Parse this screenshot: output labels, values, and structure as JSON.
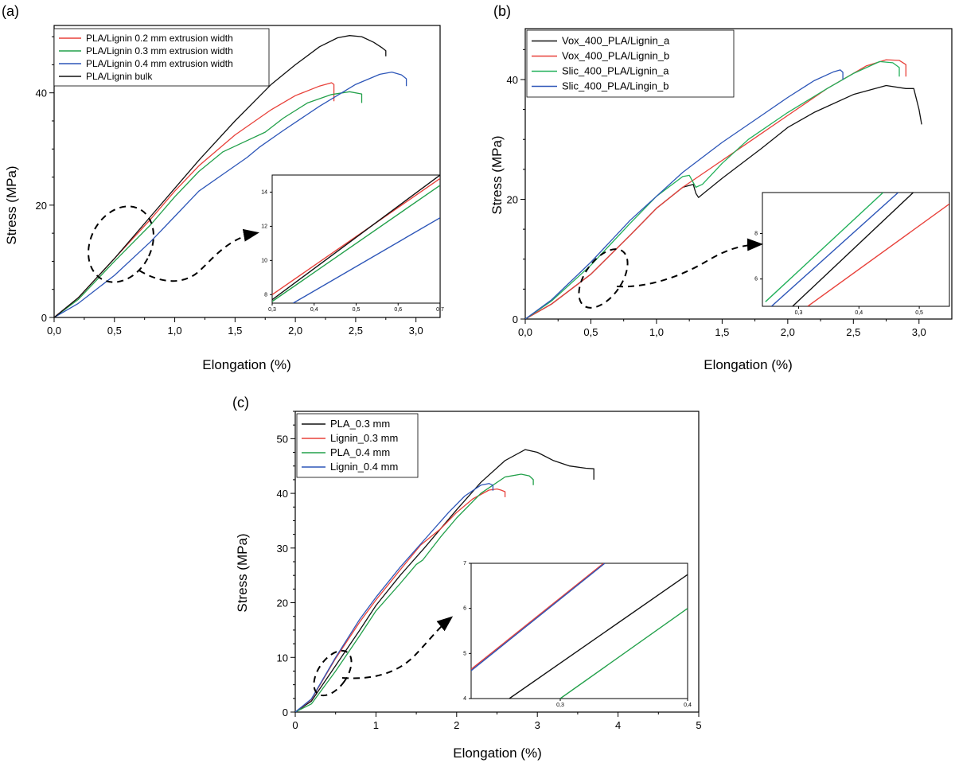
{
  "chart_data": [
    {
      "panel": "(a)",
      "type": "line",
      "xlabel": "Elongation (%)",
      "ylabel": "Stress (MPa)",
      "xlim": [
        0,
        3.2
      ],
      "ylim": [
        0,
        52
      ],
      "xticks": [
        "0,0",
        "0,5",
        "1,0",
        "1,5",
        "2,0",
        "2,5",
        "3,0"
      ],
      "yticks": [
        "0",
        "20",
        "40"
      ],
      "legend_position": "top-left",
      "series": [
        {
          "name": "PLA/Lignin 0.2 mm extrusion width",
          "color": "#e8413a",
          "x": [
            0,
            0.2,
            0.5,
            0.8,
            1.0,
            1.2,
            1.5,
            1.8,
            2.0,
            2.2,
            2.3,
            2.32,
            2.32
          ],
          "y": [
            0,
            3.5,
            10.5,
            17.5,
            22.5,
            27,
            32.5,
            37,
            39.5,
            41.2,
            41.8,
            41.5,
            38.5
          ]
        },
        {
          "name": "PLA/Lignin 0.3 mm extrusion width",
          "color": "#22a04a",
          "x": [
            0,
            0.2,
            0.5,
            0.8,
            1.0,
            1.2,
            1.4,
            1.6,
            1.75,
            1.9,
            2.1,
            2.3,
            2.45,
            2.55,
            2.55
          ],
          "y": [
            0,
            3.2,
            10,
            16.5,
            21.5,
            26,
            29.5,
            31.5,
            33,
            35.5,
            38.2,
            39.7,
            40.2,
            39.8,
            38.2
          ]
        },
        {
          "name": "PLA/Lignin 0.4 mm extrusion width",
          "color": "#2d56b8",
          "x": [
            0,
            0.2,
            0.5,
            0.8,
            1.0,
            1.2,
            1.4,
            1.6,
            1.7,
            1.9,
            2.2,
            2.5,
            2.7,
            2.8,
            2.88,
            2.92,
            2.92
          ],
          "y": [
            0,
            2.5,
            7.5,
            13.5,
            18,
            22.5,
            25.5,
            28.5,
            30.3,
            33.3,
            37.6,
            41.5,
            43.3,
            43.7,
            43.2,
            42.5,
            41.2
          ]
        },
        {
          "name": "PLA/Lignin bulk",
          "color": "#111111",
          "x": [
            0,
            0.2,
            0.5,
            0.8,
            1.0,
            1.2,
            1.5,
            1.8,
            2.0,
            2.2,
            2.35,
            2.45,
            2.55,
            2.65,
            2.72,
            2.75,
            2.75
          ],
          "y": [
            0,
            3.5,
            10.5,
            18,
            23,
            28,
            35,
            41.5,
            45,
            48.2,
            49.8,
            50.2,
            50,
            49,
            48,
            47.5,
            46.5
          ]
        }
      ],
      "inset": {
        "xlim": [
          0.3,
          0.7
        ],
        "ylim": [
          7.5,
          15
        ],
        "xticks": [
          "0,3",
          "0,4",
          "0,5",
          "0,6",
          "0,7"
        ],
        "yticks": [
          "8",
          "10",
          "12",
          "14"
        ],
        "series": [
          {
            "name": "PLA/Lignin 0.2 mm extrusion width",
            "color": "#e8413a",
            "x": [
              0.3,
              0.7
            ],
            "y": [
              8.0,
              14.8
            ]
          },
          {
            "name": "PLA/Lignin 0.3 mm extrusion width",
            "color": "#22a04a",
            "x": [
              0.3,
              0.7
            ],
            "y": [
              7.6,
              14.4
            ]
          },
          {
            "name": "PLA/Lignin 0.4 mm extrusion width",
            "color": "#2d56b8",
            "x": [
              0.35,
              0.7
            ],
            "y": [
              7.5,
              12.5
            ]
          },
          {
            "name": "PLA/Lignin bulk",
            "color": "#111111",
            "x": [
              0.3,
              0.7
            ],
            "y": [
              7.7,
              15.0
            ]
          }
        ]
      }
    },
    {
      "panel": "(b)",
      "type": "line",
      "xlabel": "Elongation (%)",
      "ylabel": "Stress (MPa)",
      "xlim": [
        0,
        3.25
      ],
      "ylim": [
        0,
        48.5
      ],
      "xticks": [
        "0,0",
        "0,5",
        "1,0",
        "1,5",
        "2,0",
        "2,5",
        "3,0"
      ],
      "yticks": [
        "0",
        "20",
        "40"
      ],
      "legend_position": "top-left",
      "series": [
        {
          "name": "Vox_400_PLA/Lignin_a",
          "color": "#111111",
          "x": [
            0,
            0.2,
            0.5,
            0.8,
            1.0,
            1.2,
            1.28,
            1.3,
            1.32,
            1.5,
            1.8,
            2.0,
            2.2,
            2.5,
            2.75,
            2.9,
            2.96,
            3.0,
            3.02
          ],
          "y": [
            0,
            2.5,
            7.5,
            14,
            18.5,
            22,
            22.5,
            21,
            20.3,
            23.5,
            28.5,
            32,
            34.5,
            37.5,
            39,
            38.5,
            38.5,
            35,
            32.5
          ]
        },
        {
          "name": "Vox_400_PLA/Lignin_b",
          "color": "#e8413a",
          "x": [
            0,
            0.2,
            0.5,
            0.8,
            1.0,
            1.2,
            1.4,
            1.6,
            1.8,
            2.0,
            2.3,
            2.6,
            2.75,
            2.85,
            2.9,
            2.9
          ],
          "y": [
            0,
            2.5,
            7.5,
            14,
            18.5,
            22,
            25,
            28,
            31,
            34,
            38.5,
            42.3,
            43.3,
            43.2,
            42.5,
            40.5
          ]
        },
        {
          "name": "Slic_400_PLA/Lignin_a",
          "color": "#22b05a",
          "x": [
            0,
            0.2,
            0.5,
            0.8,
            1.0,
            1.2,
            1.25,
            1.3,
            1.35,
            1.5,
            1.7,
            2.0,
            2.3,
            2.5,
            2.7,
            2.8,
            2.85,
            2.85
          ],
          "y": [
            0,
            3.0,
            9.0,
            16,
            20.5,
            23.8,
            24,
            22,
            22.5,
            26,
            30,
            34.5,
            38.5,
            41,
            43,
            42.8,
            42,
            40.5
          ]
        },
        {
          "name": "Slic_400_PLA/Lingin_b",
          "color": "#2d56b8",
          "x": [
            0,
            0.2,
            0.5,
            0.8,
            1.0,
            1.2,
            1.5,
            1.8,
            2.0,
            2.2,
            2.35,
            2.4,
            2.42,
            2.42
          ],
          "y": [
            0,
            3.2,
            9.5,
            16.5,
            20.5,
            24.5,
            29.5,
            34,
            37,
            39.8,
            41.3,
            41.6,
            41.2,
            40
          ]
        }
      ],
      "inset": {
        "xlim": [
          0.24,
          0.55
        ],
        "ylim": [
          4.8,
          9.8
        ],
        "xticks": [
          "0,3",
          "0,4",
          "0,5"
        ],
        "yticks": [
          "6",
          "8"
        ],
        "series": [
          {
            "name": "Vox_400_PLA/Lignin_a",
            "color": "#111111",
            "x": [
              0.29,
              0.49
            ],
            "y": [
              4.8,
              9.8
            ]
          },
          {
            "name": "Vox_400_PLA/Lignin_b",
            "color": "#e8413a",
            "x": [
              0.315,
              0.55
            ],
            "y": [
              4.8,
              9.3
            ]
          },
          {
            "name": "Slic_400_PLA/Lignin_a",
            "color": "#22b05a",
            "x": [
              0.245,
              0.44
            ],
            "y": [
              5.0,
              9.8
            ]
          },
          {
            "name": "Slic_400_PLA/Lingin_b",
            "color": "#2d56b8",
            "x": [
              0.255,
              0.465
            ],
            "y": [
              4.8,
              9.8
            ]
          }
        ]
      }
    },
    {
      "panel": "(c)",
      "type": "line",
      "xlabel": "Elongation (%)",
      "ylabel": "Stress (MPa)",
      "xlim": [
        0,
        5
      ],
      "ylim": [
        0,
        55
      ],
      "xticks": [
        "0",
        "1",
        "2",
        "3",
        "4",
        "5"
      ],
      "yticks": [
        "0",
        "10",
        "20",
        "30",
        "40",
        "50"
      ],
      "legend_position": "top-left",
      "series": [
        {
          "name": "PLA_0.3 mm",
          "color": "#111111",
          "x": [
            0,
            0.2,
            0.5,
            0.8,
            1.0,
            1.3,
            1.6,
            2.0,
            2.3,
            2.6,
            2.85,
            3.0,
            3.2,
            3.4,
            3.6,
            3.7,
            3.7
          ],
          "y": [
            0,
            2.0,
            8.5,
            15,
            19.5,
            25,
            30,
            37,
            42,
            46,
            48,
            47.5,
            46,
            45,
            44.6,
            44.5,
            42.5
          ]
        },
        {
          "name": "Lignin_0.3 mm",
          "color": "#e8413a",
          "x": [
            0,
            0.2,
            0.5,
            0.8,
            1.0,
            1.3,
            1.55,
            1.8,
            2.0,
            2.2,
            2.4,
            2.5,
            2.55,
            2.6,
            2.6
          ],
          "y": [
            0,
            2.3,
            9.8,
            16.5,
            20.5,
            26,
            30.5,
            33.5,
            36.5,
            39,
            40.6,
            40.8,
            40.6,
            40.3,
            39.3
          ]
        },
        {
          "name": "PLA_0.4 mm",
          "color": "#22a04a",
          "x": [
            0,
            0.2,
            0.5,
            0.8,
            1.0,
            1.3,
            1.5,
            1.58,
            1.8,
            2.0,
            2.3,
            2.6,
            2.8,
            2.9,
            2.95,
            2.95
          ],
          "y": [
            0,
            1.5,
            7.5,
            14,
            18.5,
            23.5,
            27,
            27.8,
            32,
            35.5,
            40,
            43,
            43.5,
            43.2,
            42.5,
            41.5
          ]
        },
        {
          "name": "Lignin_0.4 mm",
          "color": "#2d56b8",
          "x": [
            0,
            0.2,
            0.5,
            0.8,
            1.0,
            1.3,
            1.6,
            1.9,
            2.1,
            2.3,
            2.4,
            2.45,
            2.45
          ],
          "y": [
            0,
            2.4,
            10,
            17,
            21,
            26.5,
            31.5,
            36.5,
            39.5,
            41.5,
            41.8,
            41.5,
            40.5
          ]
        }
      ],
      "inset": {
        "xlim": [
          0.23,
          0.4
        ],
        "ylim": [
          4,
          7
        ],
        "xticks": [
          "0,3",
          "0,4"
        ],
        "yticks": [
          "4",
          "5",
          "6",
          "7"
        ],
        "series": [
          {
            "name": "PLA_0.3 mm",
            "color": "#111111",
            "x": [
              0.26,
              0.4
            ],
            "y": [
              4.0,
              6.75
            ]
          },
          {
            "name": "Lignin_0.3 mm",
            "color": "#e8413a",
            "x": [
              0.23,
              0.334
            ],
            "y": [
              4.65,
              7.0
            ]
          },
          {
            "name": "PLA_0.4 mm",
            "color": "#22a04a",
            "x": [
              0.3,
              0.4
            ],
            "y": [
              4.0,
              6.0
            ]
          },
          {
            "name": "Lignin_0.4 mm",
            "color": "#2d56b8",
            "x": [
              0.23,
              0.335
            ],
            "y": [
              4.62,
              7.0
            ]
          }
        ]
      }
    }
  ]
}
